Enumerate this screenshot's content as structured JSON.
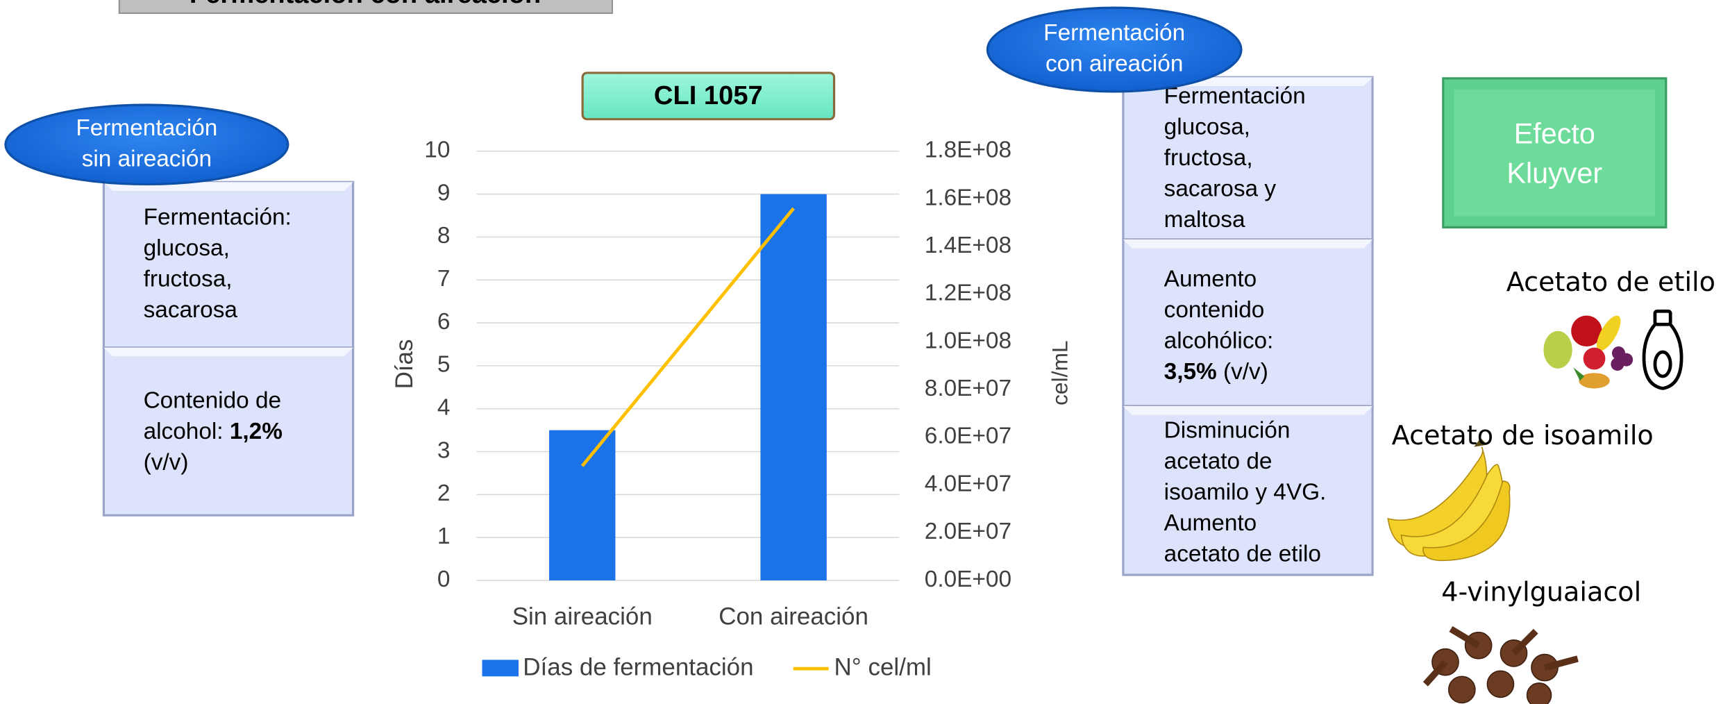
{
  "slide_title": "Fermentación con aireación",
  "chart_data": {
    "type": "bar",
    "title": "CLI 1057",
    "categories": [
      "Sin aireación",
      "Con aireación"
    ],
    "series": [
      {
        "name": "Días de fermentación",
        "type": "bar",
        "color": "#1a73e8",
        "values": [
          3.5,
          9
        ]
      },
      {
        "name": "N° cel/ml",
        "type": "line",
        "color": "#ffc000",
        "axis": "y2",
        "values": [
          48000000,
          156000000
        ]
      }
    ],
    "ylabel": "Días",
    "y2label": "cel/mL",
    "ylim": [
      0,
      10
    ],
    "yticks": [
      0,
      1,
      2,
      3,
      4,
      5,
      6,
      7,
      8,
      9,
      10
    ],
    "y2lim": [
      0,
      180000000
    ],
    "y2ticks": [
      {
        "value": 0,
        "label": "0.0E+00"
      },
      {
        "value": 20000000,
        "label": "2.0E+07"
      },
      {
        "value": 40000000,
        "label": "4.0E+07"
      },
      {
        "value": 60000000,
        "label": "6.0E+07"
      },
      {
        "value": 80000000,
        "label": "8.0E+07"
      },
      {
        "value": 100000000,
        "label": "1.0E+08"
      },
      {
        "value": 120000000,
        "label": "1.2E+08"
      },
      {
        "value": 140000000,
        "label": "1.4E+08"
      },
      {
        "value": 160000000,
        "label": "1.6E+08"
      },
      {
        "value": 180000000,
        "label": "1.8E+08"
      }
    ],
    "grid": true,
    "legend": "bottom"
  },
  "left": {
    "badge": [
      "Fermentación",
      "sin aireación"
    ],
    "boxes": [
      [
        [
          "Fermentación:"
        ],
        [
          "glucosa,"
        ],
        [
          "fructosa,"
        ],
        [
          "sacarosa"
        ]
      ],
      [
        [
          "Contenido de"
        ],
        [
          {
            "text": "alcohol: "
          },
          {
            "text": "1,2%",
            "bold": true
          }
        ],
        [
          "(v/v)"
        ]
      ]
    ]
  },
  "right": {
    "badge": [
      "Fermentación",
      "con aireación"
    ],
    "boxes": [
      [
        [
          "Fermentación"
        ],
        [
          "glucosa,"
        ],
        [
          "fructosa,"
        ],
        [
          "sacarosa y"
        ],
        [
          "maltosa"
        ]
      ],
      [
        [
          "Aumento"
        ],
        [
          "contenido"
        ],
        [
          "alcohólico:"
        ],
        [
          {
            "text": "3,5%",
            "bold": true
          },
          {
            "text": " (v/v)"
          }
        ]
      ],
      [
        [
          "Disminución"
        ],
        [
          "acetato de"
        ],
        [
          "isoamilo y 4VG."
        ],
        [
          "Aumento"
        ],
        [
          "acetato de etilo"
        ]
      ]
    ]
  },
  "kluyver": [
    "Efecto",
    "Kluyver"
  ],
  "aromas": [
    "Acetato de etilo",
    "Acetato de isoamilo",
    "4-vinylguaiacol"
  ]
}
